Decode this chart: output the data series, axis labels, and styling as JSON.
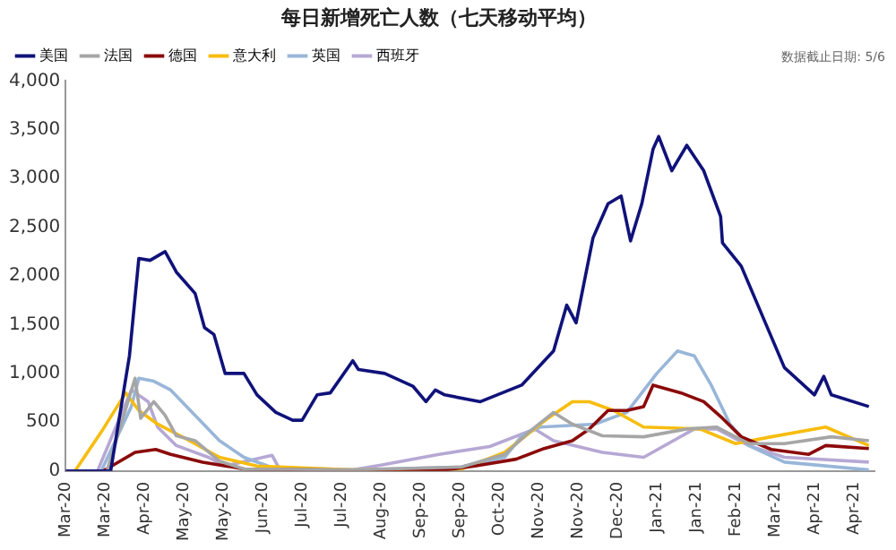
{
  "chart_data": {
    "type": "line",
    "title": "每日新增死亡人数（七天移动平均）",
    "annotations": [
      "数据截止日期: 5/6"
    ],
    "xlim": [
      "2020-03-01",
      "2021-05-06"
    ],
    "xticks": [
      {
        "value": "2020-03-01",
        "label": "Mar-20"
      },
      {
        "value": "2020-03-22",
        "label": "Mar-20"
      },
      {
        "value": "2020-04-12",
        "label": "Apr-20"
      },
      {
        "value": "2020-05-03",
        "label": "May-20"
      },
      {
        "value": "2020-05-24",
        "label": "May-20"
      },
      {
        "value": "2020-06-14",
        "label": "Jun-20"
      },
      {
        "value": "2020-07-05",
        "label": "Jul-20"
      },
      {
        "value": "2020-07-26",
        "label": "Jul-20"
      },
      {
        "value": "2020-08-16",
        "label": "Aug-20"
      },
      {
        "value": "2020-09-06",
        "label": "Sep-20"
      },
      {
        "value": "2020-09-27",
        "label": "Sep-20"
      },
      {
        "value": "2020-10-18",
        "label": "Oct-20"
      },
      {
        "value": "2020-11-08",
        "label": "Nov-20"
      },
      {
        "value": "2020-11-29",
        "label": "Nov-20"
      },
      {
        "value": "2020-12-20",
        "label": "Dec-20"
      },
      {
        "value": "2021-01-10",
        "label": "Jan-21"
      },
      {
        "value": "2021-01-31",
        "label": "Jan-21"
      },
      {
        "value": "2021-02-21",
        "label": "Feb-21"
      },
      {
        "value": "2021-03-14",
        "label": "Mar-21"
      },
      {
        "value": "2021-04-04",
        "label": "Apr-21"
      },
      {
        "value": "2021-04-25",
        "label": "Apr-21"
      }
    ],
    "ylim": [
      0,
      4000
    ],
    "yticks": [
      0,
      500,
      {
        "value": 1000,
        "label": "1,000"
      },
      {
        "value": 1500,
        "label": "1,500"
      },
      {
        "value": 2000,
        "label": "2,000"
      },
      {
        "value": 2500,
        "label": "2,500"
      },
      {
        "value": 3000,
        "label": "3,000"
      },
      {
        "value": 3500,
        "label": "3,500"
      },
      {
        "value": 4000,
        "label": "4,000"
      }
    ],
    "legend": "top",
    "marker": "none",
    "line_style": "solid",
    "series": [
      {
        "name": "美国",
        "color": "#10127a",
        "x": [
          "2020-03-01",
          "2020-03-25",
          "2020-04-04",
          "2020-04-09",
          "2020-04-15",
          "2020-04-23",
          "2020-04-29",
          "2020-05-09",
          "2020-05-14",
          "2020-05-19",
          "2020-05-25",
          "2020-06-04",
          "2020-06-11",
          "2020-06-21",
          "2020-06-30",
          "2020-07-05",
          "2020-07-13",
          "2020-07-20",
          "2020-08-01",
          "2020-08-04",
          "2020-08-18",
          "2020-09-02",
          "2020-09-09",
          "2020-09-14",
          "2020-09-19",
          "2020-10-08",
          "2020-10-30",
          "2020-11-16",
          "2020-11-23",
          "2020-11-28",
          "2020-12-07",
          "2020-12-15",
          "2020-12-22",
          "2020-12-27",
          "2021-01-02",
          "2021-01-08",
          "2021-01-11",
          "2021-01-18",
          "2021-01-26",
          "2021-02-04",
          "2021-02-13",
          "2021-02-14",
          "2021-02-24",
          "2021-03-19",
          "2021-04-04",
          "2021-04-09",
          "2021-04-13",
          "2021-05-03"
        ],
        "values": [
          0,
          0,
          1180,
          2180,
          2160,
          2250,
          2040,
          1820,
          1470,
          1400,
          1000,
          1000,
          780,
          600,
          520,
          520,
          780,
          800,
          1130,
          1040,
          1000,
          870,
          710,
          830,
          780,
          710,
          880,
          1230,
          1700,
          1520,
          2390,
          2740,
          2820,
          2360,
          2740,
          3300,
          3430,
          3080,
          3340,
          3080,
          2610,
          2340,
          2100,
          1060,
          780,
          970,
          780,
          660
        ]
      },
      {
        "name": "法国",
        "color": "#a6a6a6",
        "x": [
          "2020-03-01",
          "2020-03-23",
          "2020-04-07",
          "2020-04-10",
          "2020-04-17",
          "2020-04-23",
          "2020-04-29",
          "2020-05-09",
          "2020-05-22",
          "2020-06-04",
          "2020-08-01",
          "2020-09-28",
          "2020-10-21",
          "2020-11-03",
          "2020-11-16",
          "2020-11-26",
          "2020-12-12",
          "2021-01-03",
          "2021-01-26",
          "2021-02-11",
          "2021-02-28",
          "2021-03-19",
          "2021-04-13",
          "2021-05-03"
        ],
        "values": [
          0,
          0,
          950,
          540,
          710,
          570,
          360,
          310,
          100,
          20,
          10,
          40,
          170,
          400,
          600,
          480,
          360,
          350,
          430,
          450,
          280,
          280,
          350,
          310
        ]
      },
      {
        "name": "德国",
        "color": "#8b0a0a",
        "x": [
          "2020-03-01",
          "2020-03-21",
          "2020-04-07",
          "2020-04-18",
          "2020-04-26",
          "2020-05-13",
          "2020-06-04",
          "2020-08-01",
          "2020-09-19",
          "2020-10-05",
          "2020-10-27",
          "2020-11-11",
          "2020-11-26",
          "2020-12-05",
          "2020-12-15",
          "2020-12-25",
          "2021-01-03",
          "2021-01-08",
          "2021-01-23",
          "2021-02-04",
          "2021-02-14",
          "2021-02-24",
          "2021-03-12",
          "2021-04-01",
          "2021-04-10",
          "2021-05-03"
        ],
        "values": [
          0,
          0,
          190,
          220,
          170,
          90,
          20,
          5,
          10,
          50,
          120,
          230,
          310,
          430,
          620,
          620,
          660,
          880,
          800,
          710,
          540,
          350,
          220,
          170,
          260,
          230
        ]
      },
      {
        "name": "意大利",
        "color": "#f7bd0f",
        "x": [
          "2020-03-01",
          "2020-03-06",
          "2020-03-21",
          "2020-04-02",
          "2020-04-09",
          "2020-04-19",
          "2020-05-06",
          "2020-05-22",
          "2020-06-11",
          "2020-08-01",
          "2020-09-28",
          "2020-10-21",
          "2020-11-13",
          "2020-11-26",
          "2020-12-05",
          "2020-12-18",
          "2021-01-03",
          "2021-02-02",
          "2021-02-21",
          "2021-03-12",
          "2021-04-10",
          "2021-05-03"
        ],
        "values": [
          0,
          0,
          430,
          800,
          620,
          480,
          310,
          140,
          50,
          10,
          20,
          190,
          540,
          710,
          710,
          620,
          450,
          430,
          280,
          350,
          450,
          260
        ]
      },
      {
        "name": "英国",
        "color": "#98b6d8",
        "x": [
          "2020-03-01",
          "2020-03-20",
          "2020-04-05",
          "2020-04-09",
          "2020-04-17",
          "2020-04-26",
          "2020-05-09",
          "2020-05-22",
          "2020-06-04",
          "2020-06-21",
          "2020-08-01",
          "2020-09-28",
          "2020-10-21",
          "2020-10-30",
          "2020-11-09",
          "2020-12-08",
          "2020-12-25",
          "2021-01-10",
          "2021-01-21",
          "2021-01-30",
          "2021-02-08",
          "2021-02-18",
          "2021-02-28",
          "2021-03-19",
          "2021-05-03"
        ],
        "values": [
          0,
          0,
          660,
          950,
          920,
          830,
          570,
          310,
          140,
          20,
          10,
          40,
          140,
          360,
          450,
          480,
          600,
          1000,
          1230,
          1180,
          880,
          480,
          260,
          90,
          10
        ]
      },
      {
        "name": "西班牙",
        "color": "#b6a8d4",
        "x": [
          "2020-03-01",
          "2020-03-18",
          "2020-04-05",
          "2020-04-14",
          "2020-04-19",
          "2020-04-29",
          "2020-05-16",
          "2020-05-25",
          "2020-06-19",
          "2020-06-23",
          "2020-08-01",
          "2020-08-16",
          "2020-09-16",
          "2020-10-13",
          "2020-11-06",
          "2020-11-16",
          "2020-12-12",
          "2021-01-03",
          "2021-01-30",
          "2021-02-11",
          "2021-02-28",
          "2021-03-19",
          "2021-05-03"
        ],
        "values": [
          0,
          0,
          830,
          710,
          450,
          260,
          140,
          50,
          160,
          20,
          10,
          60,
          170,
          250,
          430,
          310,
          190,
          140,
          430,
          430,
          260,
          140,
          90
        ]
      }
    ]
  }
}
